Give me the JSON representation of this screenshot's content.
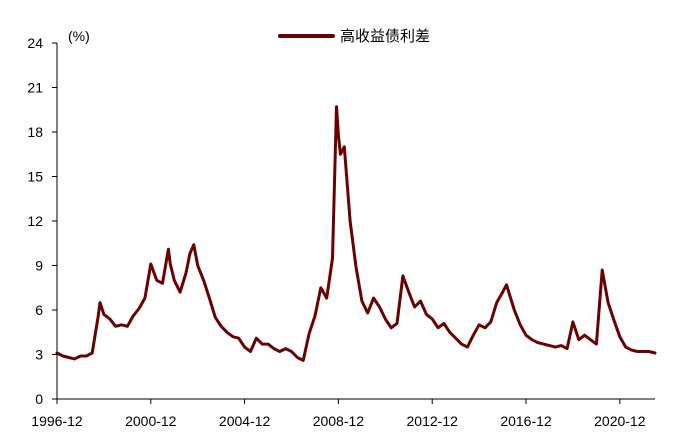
{
  "chart_data": {
    "type": "line",
    "unit_label": "(%)",
    "legend": {
      "placement": "top-center"
    },
    "xlabel": "",
    "ylabel": "",
    "ylim": [
      0,
      24
    ],
    "y_ticks": [
      0,
      3,
      6,
      9,
      12,
      15,
      18,
      21,
      24
    ],
    "x_ticks": [
      "1996-12",
      "2000-12",
      "2004-12",
      "2008-12",
      "2012-12",
      "2016-12",
      "2020-12"
    ],
    "x_range": [
      "1996-12",
      "2022-06"
    ],
    "grid": false,
    "colors": {
      "series": "#6b0000",
      "axis": "#000000"
    },
    "series": [
      {
        "name": "高收益债利差",
        "points": [
          [
            "1996-12",
            3.1
          ],
          [
            "1997-03",
            2.9
          ],
          [
            "1997-06",
            2.8
          ],
          [
            "1997-09",
            2.7
          ],
          [
            "1997-12",
            2.9
          ],
          [
            "1998-03",
            2.9
          ],
          [
            "1998-06",
            3.1
          ],
          [
            "1998-09",
            5.5
          ],
          [
            "1998-10",
            6.5
          ],
          [
            "1998-12",
            5.7
          ],
          [
            "1999-03",
            5.4
          ],
          [
            "1999-06",
            4.9
          ],
          [
            "1999-09",
            5.0
          ],
          [
            "1999-12",
            4.9
          ],
          [
            "2000-03",
            5.6
          ],
          [
            "2000-06",
            6.1
          ],
          [
            "2000-09",
            6.8
          ],
          [
            "2000-12",
            9.1
          ],
          [
            "2001-03",
            8.0
          ],
          [
            "2001-06",
            7.8
          ],
          [
            "2001-09",
            10.1
          ],
          [
            "2001-10",
            9.1
          ],
          [
            "2001-12",
            8.0
          ],
          [
            "2002-03",
            7.2
          ],
          [
            "2002-06",
            8.5
          ],
          [
            "2002-08",
            9.8
          ],
          [
            "2002-10",
            10.4
          ],
          [
            "2002-12",
            9.0
          ],
          [
            "2003-03",
            8.0
          ],
          [
            "2003-06",
            6.8
          ],
          [
            "2003-09",
            5.5
          ],
          [
            "2003-12",
            4.9
          ],
          [
            "2004-03",
            4.5
          ],
          [
            "2004-06",
            4.2
          ],
          [
            "2004-09",
            4.1
          ],
          [
            "2004-12",
            3.5
          ],
          [
            "2005-03",
            3.2
          ],
          [
            "2005-06",
            4.1
          ],
          [
            "2005-09",
            3.7
          ],
          [
            "2005-12",
            3.7
          ],
          [
            "2006-03",
            3.4
          ],
          [
            "2006-06",
            3.2
          ],
          [
            "2006-09",
            3.4
          ],
          [
            "2006-12",
            3.2
          ],
          [
            "2007-03",
            2.8
          ],
          [
            "2007-06",
            2.6
          ],
          [
            "2007-09",
            4.4
          ],
          [
            "2007-12",
            5.6
          ],
          [
            "2008-03",
            7.5
          ],
          [
            "2008-06",
            6.8
          ],
          [
            "2008-09",
            9.5
          ],
          [
            "2008-11",
            19.7
          ],
          [
            "2008-12",
            17.8
          ],
          [
            "2009-01",
            16.5
          ],
          [
            "2009-03",
            17.0
          ],
          [
            "2009-06",
            12.0
          ],
          [
            "2009-09",
            8.9
          ],
          [
            "2009-12",
            6.6
          ],
          [
            "2010-03",
            5.8
          ],
          [
            "2010-06",
            6.8
          ],
          [
            "2010-09",
            6.2
          ],
          [
            "2010-12",
            5.4
          ],
          [
            "2011-03",
            4.8
          ],
          [
            "2011-06",
            5.1
          ],
          [
            "2011-09",
            8.3
          ],
          [
            "2011-12",
            7.2
          ],
          [
            "2012-03",
            6.2
          ],
          [
            "2012-06",
            6.6
          ],
          [
            "2012-09",
            5.7
          ],
          [
            "2012-12",
            5.4
          ],
          [
            "2013-03",
            4.8
          ],
          [
            "2013-06",
            5.1
          ],
          [
            "2013-09",
            4.5
          ],
          [
            "2013-12",
            4.1
          ],
          [
            "2014-03",
            3.7
          ],
          [
            "2014-06",
            3.5
          ],
          [
            "2014-09",
            4.3
          ],
          [
            "2014-12",
            5.0
          ],
          [
            "2015-03",
            4.8
          ],
          [
            "2015-06",
            5.2
          ],
          [
            "2015-09",
            6.5
          ],
          [
            "2015-12",
            7.2
          ],
          [
            "2016-02",
            7.7
          ],
          [
            "2016-06",
            6.0
          ],
          [
            "2016-09",
            5.0
          ],
          [
            "2016-12",
            4.3
          ],
          [
            "2017-03",
            4.0
          ],
          [
            "2017-06",
            3.8
          ],
          [
            "2017-09",
            3.7
          ],
          [
            "2017-12",
            3.6
          ],
          [
            "2018-03",
            3.5
          ],
          [
            "2018-06",
            3.6
          ],
          [
            "2018-09",
            3.4
          ],
          [
            "2018-12",
            5.2
          ],
          [
            "2019-03",
            4.0
          ],
          [
            "2019-06",
            4.3
          ],
          [
            "2019-09",
            4.0
          ],
          [
            "2019-12",
            3.7
          ],
          [
            "2020-03",
            8.7
          ],
          [
            "2020-06",
            6.5
          ],
          [
            "2020-09",
            5.3
          ],
          [
            "2020-12",
            4.2
          ],
          [
            "2021-03",
            3.5
          ],
          [
            "2021-06",
            3.3
          ],
          [
            "2021-09",
            3.2
          ],
          [
            "2021-12",
            3.2
          ],
          [
            "2022-03",
            3.2
          ],
          [
            "2022-06",
            3.1
          ]
        ]
      }
    ]
  }
}
